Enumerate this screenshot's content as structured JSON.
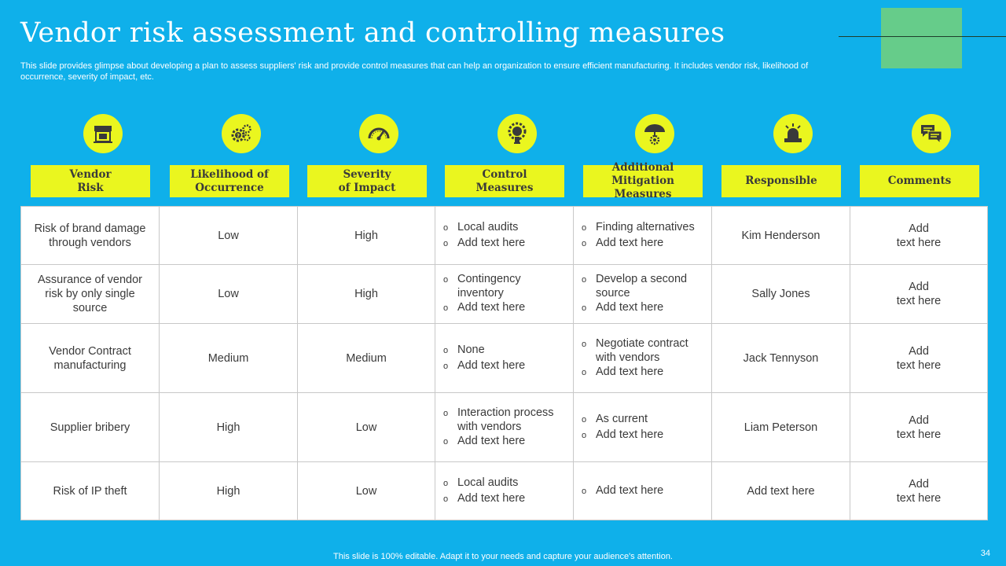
{
  "title": "Vendor risk assessment and controlling measures",
  "subtitle": "This slide provides glimpse about developing a plan to assess suppliers' risk and provide control measures that can help an organization to ensure efficient manufacturing. It includes vendor risk, likelihood of occurrence, severity of impact, etc.",
  "columns": [
    {
      "label": "Vendor\nRisk",
      "icon": "store-icon"
    },
    {
      "label": "Likelihood of\nOccurrence",
      "icon": "gears-question-icon"
    },
    {
      "label": "Severity\nof Impact",
      "icon": "gauge-icon"
    },
    {
      "label": "Control\nMeasures",
      "icon": "gear-bulb-icon"
    },
    {
      "label": "Additional\nMitigation Measures",
      "icon": "umbrella-gear-icon"
    },
    {
      "label": "Responsible",
      "icon": "alarm-person-icon"
    },
    {
      "label": "Comments",
      "icon": "chat-bubbles-icon"
    }
  ],
  "bullet_char": "o",
  "rows": [
    {
      "risk": "Risk of brand damage through vendors",
      "likelihood": "Low",
      "severity": "High",
      "control": [
        "Local audits",
        "Add text here"
      ],
      "mitigation": [
        "Finding alternatives",
        "Add text here"
      ],
      "responsible": "Kim Henderson",
      "comments": "Add\ntext here"
    },
    {
      "risk": "Assurance of vendor risk by only single source",
      "likelihood": "Low",
      "severity": "High",
      "control": [
        "Contingency inventory",
        "Add text here"
      ],
      "mitigation": [
        "Develop a second source",
        "Add text here"
      ],
      "responsible": "Sally Jones",
      "comments": "Add\ntext here"
    },
    {
      "risk": "Vendor Contract manufacturing",
      "likelihood": "Medium",
      "severity": "Medium",
      "control": [
        "None",
        "Add text here"
      ],
      "mitigation": [
        "Negotiate contract with vendors",
        "Add text here"
      ],
      "responsible": "Jack Tennyson",
      "comments": "Add\ntext here"
    },
    {
      "risk": "Supplier bribery",
      "likelihood": "High",
      "severity": "Low",
      "control": [
        "Interaction process with vendors",
        "Add text here"
      ],
      "mitigation": [
        "As current",
        "Add text here"
      ],
      "responsible": "Liam Peterson",
      "comments": "Add\ntext here"
    },
    {
      "risk": "Risk of IP theft",
      "likelihood": "High",
      "severity": "Low",
      "control": [
        "Local audits",
        "Add text here"
      ],
      "mitigation": [
        "Add text here"
      ],
      "responsible": "Add text here",
      "comments": "Add\ntext here"
    }
  ],
  "footer": "This slide is 100% editable. Adapt it to your needs and capture your audience's attention.",
  "page_number": "34",
  "colors": {
    "background": "#0fb0ea",
    "accent": "#eaf61f",
    "deco": "#66cc8a"
  }
}
